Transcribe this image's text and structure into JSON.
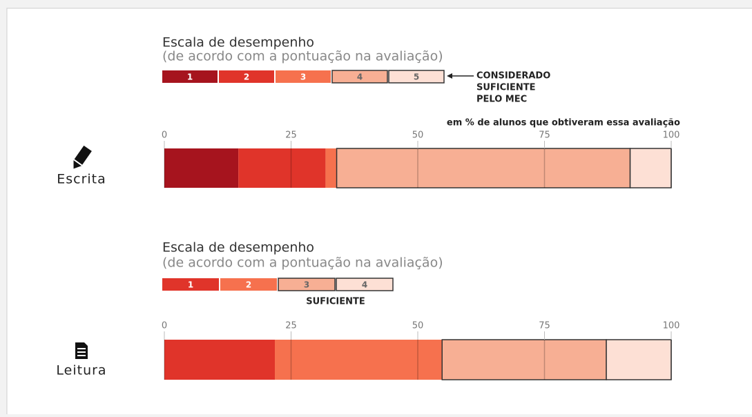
{
  "chart_data": [
    {
      "type": "stacked-bar",
      "title": "Escala de desempenho",
      "subtitle": "(de acordo com a pontuação na avaliação)",
      "note": [
        "CONSIDERADO",
        "SUFICIENTE",
        "PELO MEC"
      ],
      "axis_label": "em % de alunos que obtiveram essa avaliação",
      "categories": [
        "Escrita"
      ],
      "series": [
        {
          "name": "1",
          "color": "#a6141e",
          "values": [
            14.6
          ]
        },
        {
          "name": "2",
          "color": "#e0342a",
          "values": [
            17.2
          ]
        },
        {
          "name": "3",
          "color": "#f6714e",
          "values": [
            2.2
          ]
        },
        {
          "name": "4",
          "color": "#f7af94",
          "values": [
            57.9
          ],
          "outline": true
        },
        {
          "name": "5",
          "color": "#fde0d5",
          "values": [
            8.1
          ],
          "outline": true
        }
      ],
      "xlim": [
        0,
        100
      ],
      "xticks": [
        0,
        25,
        50,
        75,
        100
      ],
      "grid": true
    },
    {
      "type": "stacked-bar",
      "title": "Escala de desempenho",
      "subtitle": "(de acordo com a pontuação na avaliação)",
      "note": [
        "SUFICIENTE"
      ],
      "categories": [
        "Leitura"
      ],
      "series": [
        {
          "name": "1",
          "color": "#e0342a",
          "values": [
            21.8
          ]
        },
        {
          "name": "2",
          "color": "#f6714e",
          "values": [
            33.0
          ]
        },
        {
          "name": "3",
          "color": "#f7af94",
          "values": [
            32.4
          ],
          "outline": true
        },
        {
          "name": "4",
          "color": "#fde0d5",
          "values": [
            12.8
          ],
          "outline": true
        }
      ],
      "xlim": [
        0,
        100
      ],
      "xticks": [
        0,
        25,
        50,
        75,
        100
      ],
      "grid": true
    }
  ]
}
